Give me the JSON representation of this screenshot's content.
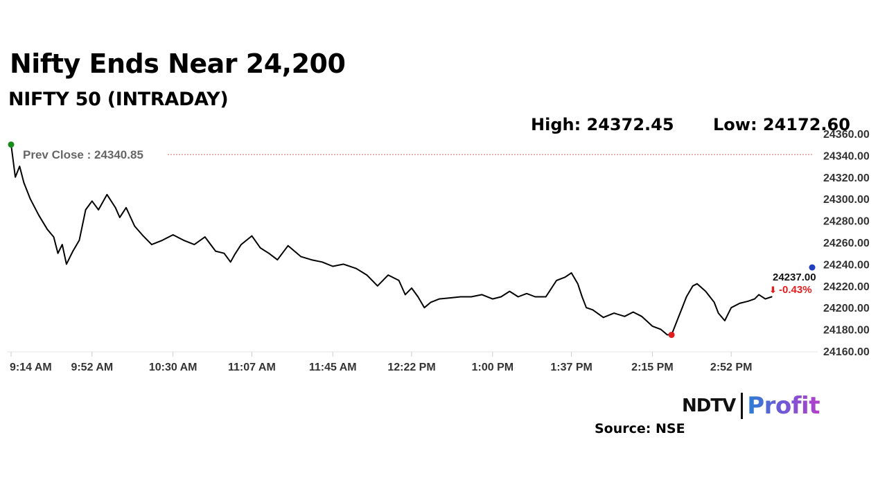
{
  "header": {
    "title": "Nifty Ends Near 24,200",
    "subtitle": "NIFTY 50 (INTRADAY)"
  },
  "stats": {
    "high": "High: 24372.45",
    "low": "Low: 24172.60"
  },
  "chart_data": {
    "type": "line",
    "title": "Nifty Ends Near 24,200",
    "subtitle": "NIFTY 50 (INTRADAY)",
    "xlabel": "",
    "ylabel": "",
    "ylim": [
      24160,
      24360
    ],
    "y_ticks": [
      "24160.00",
      "24180.00",
      "24200.00",
      "24220.00",
      "24240.00",
      "24260.00",
      "24280.00",
      "24300.00",
      "24320.00",
      "24340.00",
      "24360.00"
    ],
    "x_ticks": [
      "9:14 AM",
      "9:52 AM",
      "10:30 AM",
      "11:07 AM",
      "11:45 AM",
      "12:22 PM",
      "1:00 PM",
      "1:37 PM",
      "2:15 PM",
      "2:52 PM"
    ],
    "grid": false,
    "reference_line": {
      "label": "Prev Close : 24340.85",
      "value": 24340.85,
      "color": "#e06060"
    },
    "last_value": {
      "label": "24237.00",
      "change": "-0.43%",
      "arrow": "⬇",
      "change_color": "#e11d1d"
    },
    "markers": [
      {
        "name": "open",
        "x": "9:14 AM",
        "y": 24350,
        "color": "#1a8a1a"
      },
      {
        "name": "low",
        "x": "2:24 PM",
        "y": 24175,
        "color": "#e11d1d"
      },
      {
        "name": "current",
        "x": "3:30 PM",
        "y": 24237,
        "color": "#1f3fbf"
      }
    ],
    "series": [
      {
        "color": "#000000",
        "x": [
          "9:14 AM",
          "9:16 AM",
          "9:18 AM",
          "9:20 AM",
          "9:23 AM",
          "9:27 AM",
          "9:31 AM",
          "9:34 AM",
          "9:36 AM",
          "9:38 AM",
          "9:40 AM",
          "9:43 AM",
          "9:46 AM",
          "9:49 AM",
          "9:52 AM",
          "9:55 AM",
          "9:59 AM",
          "10:03 AM",
          "10:05 AM",
          "10:08 AM",
          "10:12 AM",
          "10:16 AM",
          "10:20 AM",
          "10:25 AM",
          "10:30 AM",
          "10:35 AM",
          "10:40 AM",
          "10:45 AM",
          "10:50 AM",
          "10:54 AM",
          "10:57 AM",
          "10:59 AM",
          "11:02 AM",
          "11:07 AM",
          "11:11 AM",
          "11:15 AM",
          "11:19 AM",
          "11:24 AM",
          "11:30 AM",
          "11:35 AM",
          "11:40 AM",
          "11:45 AM",
          "11:50 AM",
          "11:56 AM",
          "12:01 PM",
          "12:06 PM",
          "12:11 PM",
          "12:16 PM",
          "12:19 PM",
          "12:22 PM",
          "12:25 PM",
          "12:28 PM",
          "12:31 PM",
          "12:35 PM",
          "12:40 PM",
          "12:45 PM",
          "12:50 PM",
          "12:55 PM",
          "1:00 PM",
          "1:04 PM",
          "1:08 PM",
          "1:12 PM",
          "1:16 PM",
          "1:20 PM",
          "1:25 PM",
          "1:30 PM",
          "1:34 PM",
          "1:37 PM",
          "1:40 PM",
          "1:42 PM",
          "1:44 PM",
          "1:47 PM",
          "1:52 PM",
          "1:57 PM",
          "2:02 PM",
          "2:06 PM",
          "2:10 PM",
          "2:15 PM",
          "2:19 PM",
          "2:22 PM",
          "2:24 PM",
          "2:27 PM",
          "2:29 PM",
          "2:31 PM",
          "2:34 PM",
          "2:36 PM",
          "2:40 PM",
          "2:44 PM",
          "2:46 PM",
          "2:49 PM",
          "2:52 PM",
          "2:56 PM",
          "3:00 PM",
          "3:03 PM",
          "3:05 PM",
          "3:08 PM",
          "3:11 PM"
        ],
        "y": [
          24350,
          24320,
          24330,
          24315,
          24300,
          24285,
          24272,
          24265,
          24250,
          24258,
          24240,
          24252,
          24262,
          24290,
          24298,
          24290,
          24304,
          24292,
          24283,
          24292,
          24275,
          24266,
          24258,
          24262,
          24267,
          24262,
          24258,
          24265,
          24252,
          24250,
          24242,
          24249,
          24258,
          24266,
          24255,
          24250,
          24244,
          24257,
          24247,
          24244,
          24242,
          24238,
          24240,
          24236,
          24230,
          24220,
          24230,
          24225,
          24212,
          24218,
          24210,
          24200,
          24205,
          24208,
          24209,
          24210,
          24210,
          24212,
          24208,
          24210,
          24215,
          24210,
          24213,
          24210,
          24210,
          24225,
          24228,
          24232,
          24222,
          24210,
          24200,
          24198,
          24191,
          24195,
          24192,
          24196,
          24192,
          24183,
          24180,
          24175,
          24175,
          24190,
          24200,
          24210,
          24220,
          24222,
          24215,
          24205,
          24195,
          24188,
          24200,
          24204,
          24206,
          24208,
          24212,
          24208,
          24210
        ]
      }
    ]
  },
  "footer": {
    "logo_left": "NDTV",
    "logo_right": "Profit",
    "source": "Source: NSE"
  }
}
